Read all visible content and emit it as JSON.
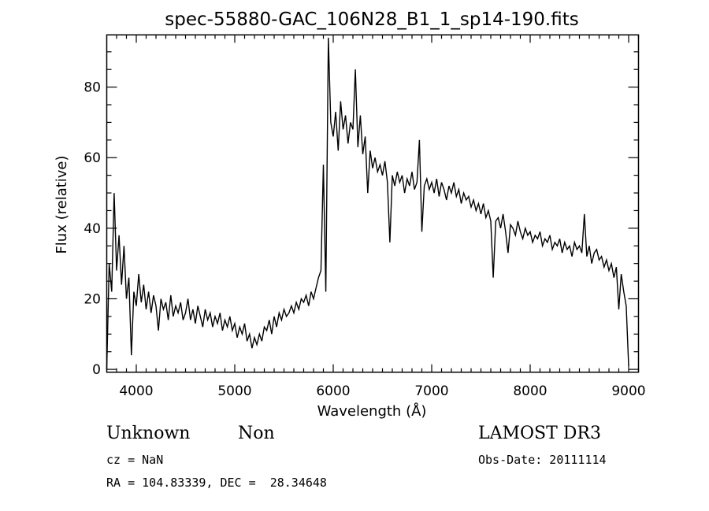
{
  "chart_data": {
    "type": "line",
    "title": "spec-55880-GAC_106N28_B1_1_sp14-190.fits",
    "xlabel": "Wavelength (Å)",
    "ylabel": "Flux (relative)",
    "xlim": [
      3700,
      9100
    ],
    "ylim": [
      -0.8,
      94.8
    ],
    "xticks": [
      "4000",
      "5000",
      "6000",
      "7000",
      "8000",
      "9000"
    ],
    "yticks": [
      "0",
      "20",
      "40",
      "60",
      "80"
    ],
    "grid": false,
    "series": [
      {
        "name": "flux",
        "x_start": 3700,
        "x_step": 25,
        "values": [
          0,
          30,
          22,
          50,
          28,
          38,
          24,
          35,
          20,
          26,
          4,
          22,
          18,
          27,
          19,
          24,
          17,
          22,
          16,
          21,
          18,
          11,
          20,
          17,
          19,
          14,
          21,
          15,
          18,
          16,
          19,
          14,
          16,
          20,
          14,
          17,
          13,
          18,
          15,
          12,
          17,
          14,
          16,
          12,
          15,
          13,
          16,
          11,
          14,
          12,
          15,
          11,
          13,
          9,
          12,
          10,
          13,
          8,
          10,
          6,
          9,
          7,
          10,
          8,
          12,
          11,
          14,
          10,
          15,
          12,
          16,
          14,
          17,
          15,
          16,
          18,
          16,
          19,
          17,
          20,
          19,
          21,
          18,
          22,
          20,
          23,
          26,
          28,
          58,
          22,
          94,
          70,
          66,
          73,
          62,
          76,
          68,
          72,
          64,
          70,
          68,
          85,
          63,
          72,
          61,
          66,
          50,
          62,
          57,
          60,
          56,
          58,
          55,
          59,
          53,
          36,
          55,
          52,
          56,
          53,
          55,
          50,
          54,
          52,
          56,
          51,
          53,
          65,
          39,
          52,
          54,
          51,
          53,
          50,
          54,
          49,
          53,
          51,
          48,
          52,
          50,
          53,
          49,
          51,
          47,
          50,
          48,
          49,
          46,
          48,
          45,
          47,
          44,
          47,
          43,
          45,
          42,
          26,
          42,
          43,
          40,
          44,
          39,
          33,
          41,
          40,
          38,
          42,
          39,
          37,
          40,
          38,
          39,
          36,
          38,
          37,
          39,
          35,
          37,
          36,
          38,
          34,
          36,
          35,
          37,
          33,
          36,
          34,
          35,
          32,
          36,
          34,
          35,
          33,
          44,
          32,
          35,
          30,
          33,
          34,
          31,
          32,
          29,
          31,
          28,
          30,
          26,
          29,
          17,
          27,
          22,
          18,
          1
        ]
      }
    ]
  },
  "info": {
    "object_class": "Unknown",
    "subclass": "Non",
    "survey": "LAMOST DR3",
    "cz": "cz = NaN",
    "obs_date": "Obs-Date: 20111114",
    "coords": "RA = 104.83339, DEC =  28.34648"
  }
}
